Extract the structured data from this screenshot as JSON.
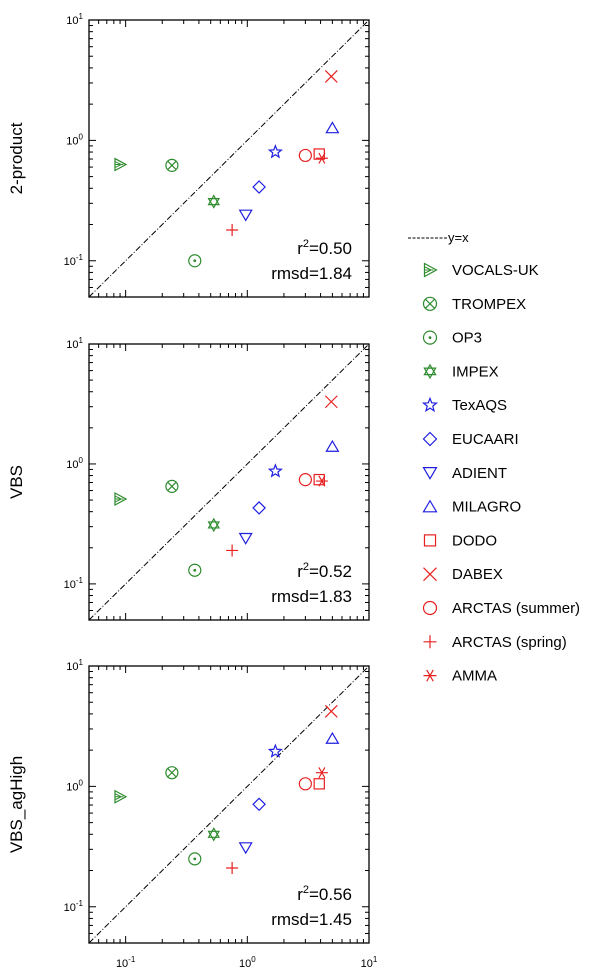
{
  "chart_data": [
    {
      "type": "scatter",
      "ylabel": "2-product",
      "xscale": "log",
      "yscale": "log",
      "xlim": [
        0.05,
        10
      ],
      "ylim": [
        0.05,
        10
      ],
      "stats": {
        "r2_label": "r",
        "r2_exp": "2",
        "r2_value": "=0.50",
        "rmsd": "rmsd=1.84"
      },
      "points": [
        {
          "series": "VOCALS-UK",
          "x": 0.09,
          "y": 0.63
        },
        {
          "series": "TROMPEX",
          "x": 0.24,
          "y": 0.62
        },
        {
          "series": "OP3",
          "x": 0.37,
          "y": 0.1
        },
        {
          "series": "IMPEX",
          "x": 0.53,
          "y": 0.31
        },
        {
          "series": "TexAQS",
          "x": 1.7,
          "y": 0.8
        },
        {
          "series": "EUCAARI",
          "x": 1.25,
          "y": 0.41
        },
        {
          "series": "ADIENT",
          "x": 0.97,
          "y": 0.24
        },
        {
          "series": "MILAGRO",
          "x": 5.0,
          "y": 1.27
        },
        {
          "series": "DODO",
          "x": 3.9,
          "y": 0.77
        },
        {
          "series": "DABEX",
          "x": 4.9,
          "y": 3.4
        },
        {
          "series": "ARCTAS (summer)",
          "x": 3.0,
          "y": 0.75
        },
        {
          "series": "ARCTAS (spring)",
          "x": 0.75,
          "y": 0.18
        },
        {
          "series": "AMMA",
          "x": 4.1,
          "y": 0.71
        }
      ]
    },
    {
      "type": "scatter",
      "ylabel": "VBS",
      "xscale": "log",
      "yscale": "log",
      "xlim": [
        0.05,
        10
      ],
      "ylim": [
        0.05,
        10
      ],
      "stats": {
        "r2_label": "r",
        "r2_exp": "2",
        "r2_value": "=0.52",
        "rmsd": "rmsd=1.83"
      },
      "points": [
        {
          "series": "VOCALS-UK",
          "x": 0.09,
          "y": 0.51
        },
        {
          "series": "TROMPEX",
          "x": 0.24,
          "y": 0.65
        },
        {
          "series": "OP3",
          "x": 0.37,
          "y": 0.13
        },
        {
          "series": "IMPEX",
          "x": 0.53,
          "y": 0.31
        },
        {
          "series": "TexAQS",
          "x": 1.7,
          "y": 0.87
        },
        {
          "series": "EUCAARI",
          "x": 1.25,
          "y": 0.43
        },
        {
          "series": "ADIENT",
          "x": 0.97,
          "y": 0.24
        },
        {
          "series": "MILAGRO",
          "x": 5.0,
          "y": 1.4
        },
        {
          "series": "DODO",
          "x": 3.9,
          "y": 0.74
        },
        {
          "series": "DABEX",
          "x": 4.9,
          "y": 3.3
        },
        {
          "series": "ARCTAS (summer)",
          "x": 3.0,
          "y": 0.74
        },
        {
          "series": "ARCTAS (spring)",
          "x": 0.75,
          "y": 0.19
        },
        {
          "series": "AMMA",
          "x": 4.1,
          "y": 0.72
        }
      ]
    },
    {
      "type": "scatter",
      "ylabel": "VBS_agHigh",
      "xscale": "log",
      "yscale": "log",
      "xlim": [
        0.05,
        10
      ],
      "ylim": [
        0.05,
        10
      ],
      "stats": {
        "r2_label": "r",
        "r2_exp": "2",
        "r2_value": "=0.56",
        "rmsd": "rmsd=1.45"
      },
      "points": [
        {
          "series": "VOCALS-UK",
          "x": 0.09,
          "y": 0.82
        },
        {
          "series": "TROMPEX",
          "x": 0.24,
          "y": 1.3
        },
        {
          "series": "OP3",
          "x": 0.37,
          "y": 0.25
        },
        {
          "series": "IMPEX",
          "x": 0.53,
          "y": 0.4
        },
        {
          "series": "TexAQS",
          "x": 1.7,
          "y": 1.95
        },
        {
          "series": "EUCAARI",
          "x": 1.25,
          "y": 0.71
        },
        {
          "series": "ADIENT",
          "x": 0.97,
          "y": 0.31
        },
        {
          "series": "MILAGRO",
          "x": 5.0,
          "y": 2.5
        },
        {
          "series": "DODO",
          "x": 3.9,
          "y": 1.05
        },
        {
          "series": "DABEX",
          "x": 4.9,
          "y": 4.2
        },
        {
          "series": "ARCTAS (summer)",
          "x": 3.0,
          "y": 1.05
        },
        {
          "series": "ARCTAS (spring)",
          "x": 0.75,
          "y": 0.21
        },
        {
          "series": "AMMA",
          "x": 4.1,
          "y": 1.3
        }
      ]
    }
  ],
  "ticks": {
    "base": "10",
    "labels": [
      {
        "exp": "-1",
        "value": 0.1
      },
      {
        "exp": "0",
        "value": 1
      },
      {
        "exp": "1",
        "value": 10
      }
    ]
  },
  "legend": {
    "placement": "right",
    "reference_line": "y=x",
    "entries": [
      {
        "name": "VOCALS-UK",
        "marker": "hatched-triangle-right-icon",
        "color": "#2e8b2e"
      },
      {
        "name": "TROMPEX",
        "marker": "circled-x-icon",
        "color": "#2e8b2e"
      },
      {
        "name": "OP3",
        "marker": "circled-dot-icon",
        "color": "#2e8b2e"
      },
      {
        "name": "IMPEX",
        "marker": "hexagram-icon",
        "color": "#2e8b2e"
      },
      {
        "name": "TexAQS",
        "marker": "star-icon",
        "color": "#1f1fe0"
      },
      {
        "name": "EUCAARI",
        "marker": "diamond-icon",
        "color": "#1f1fe0"
      },
      {
        "name": "ADIENT",
        "marker": "triangle-down-icon",
        "color": "#1f1fe0"
      },
      {
        "name": "MILAGRO",
        "marker": "triangle-up-icon",
        "color": "#1f1fe0"
      },
      {
        "name": "DODO",
        "marker": "square-icon",
        "color": "#e82020"
      },
      {
        "name": "DABEX",
        "marker": "x-icon",
        "color": "#e82020"
      },
      {
        "name": "ARCTAS (summer)",
        "marker": "circle-icon",
        "color": "#e82020"
      },
      {
        "name": "ARCTAS (spring)",
        "marker": "plus-icon",
        "color": "#e82020"
      },
      {
        "name": "AMMA",
        "marker": "asterisk-icon",
        "color": "#e82020"
      }
    ]
  }
}
